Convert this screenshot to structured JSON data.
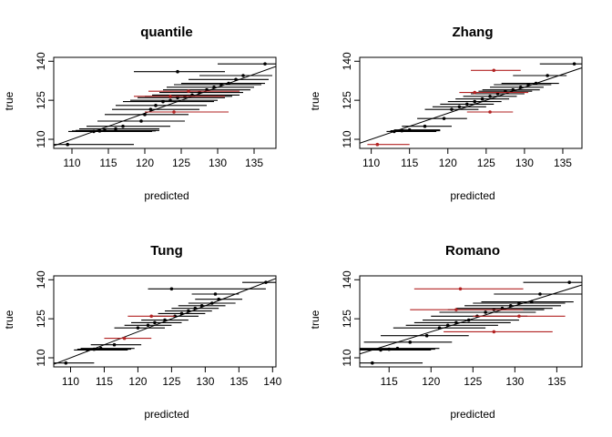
{
  "figure": {
    "panels": [
      "quantile",
      "Zhang",
      "Tung",
      "Romano"
    ]
  },
  "chart_data": [
    {
      "type": "scatter",
      "title": "quantile",
      "xlabel": "predicted",
      "ylabel": "true",
      "xlim": [
        107.5,
        138.0
      ],
      "ylim": [
        106.5,
        141.5
      ],
      "xticks": [
        110,
        115,
        120,
        125,
        130,
        135
      ],
      "yticks": [
        110,
        125,
        140
      ],
      "grid": false,
      "reference_line": {
        "type": "identity",
        "from": [
          107.5,
          107.5
        ],
        "to": [
          138.0,
          138.0
        ]
      },
      "series": [
        {
          "style": "point-interval",
          "points": [
            {
              "x": 109.4,
              "y": 108.0,
              "lo": 107.5,
              "hi": 118.5,
              "color": "black"
            },
            {
              "x": 113.0,
              "y": 113.0,
              "lo": 109.5,
              "hi": 121.0,
              "color": "black"
            },
            {
              "x": 113.8,
              "y": 113.2,
              "lo": 110.0,
              "hi": 121.5,
              "color": "black"
            },
            {
              "x": 114.5,
              "y": 113.4,
              "lo": 110.5,
              "hi": 122.0,
              "color": "black"
            },
            {
              "x": 116.0,
              "y": 114.0,
              "lo": 111.0,
              "hi": 122.0,
              "color": "black"
            },
            {
              "x": 117.0,
              "y": 115.0,
              "lo": 112.0,
              "hi": 123.5,
              "color": "black"
            },
            {
              "x": 119.5,
              "y": 117.0,
              "lo": 113.5,
              "hi": 125.5,
              "color": "black"
            },
            {
              "x": 120.0,
              "y": 119.5,
              "lo": 114.5,
              "hi": 126.0,
              "color": "black"
            },
            {
              "x": 120.8,
              "y": 121.5,
              "lo": 115.5,
              "hi": 127.5,
              "color": "black"
            },
            {
              "x": 121.5,
              "y": 123.0,
              "lo": 116.0,
              "hi": 128.5,
              "color": "black"
            },
            {
              "x": 122.5,
              "y": 124.5,
              "lo": 117.0,
              "hi": 129.5,
              "color": "black"
            },
            {
              "x": 123.5,
              "y": 125.0,
              "lo": 118.0,
              "hi": 130.0,
              "color": "black"
            },
            {
              "x": 124.5,
              "y": 126.0,
              "lo": 119.0,
              "hi": 131.0,
              "color": "black"
            },
            {
              "x": 125.5,
              "y": 126.5,
              "lo": 120.0,
              "hi": 132.0,
              "color": "black"
            },
            {
              "x": 126.5,
              "y": 127.0,
              "lo": 121.0,
              "hi": 133.0,
              "color": "black"
            },
            {
              "x": 127.5,
              "y": 128.0,
              "lo": 122.0,
              "hi": 133.5,
              "color": "black"
            },
            {
              "x": 128.5,
              "y": 129.0,
              "lo": 122.5,
              "hi": 134.5,
              "color": "black"
            },
            {
              "x": 129.5,
              "y": 130.0,
              "lo": 123.0,
              "hi": 135.0,
              "color": "black"
            },
            {
              "x": 130.5,
              "y": 131.0,
              "lo": 124.0,
              "hi": 136.0,
              "color": "black"
            },
            {
              "x": 131.5,
              "y": 131.5,
              "lo": 125.0,
              "hi": 136.5,
              "color": "black"
            },
            {
              "x": 132.5,
              "y": 133.0,
              "lo": 126.0,
              "hi": 137.0,
              "color": "black"
            },
            {
              "x": 133.5,
              "y": 134.5,
              "lo": 127.5,
              "hi": 137.5,
              "color": "black"
            },
            {
              "x": 124.5,
              "y": 136.0,
              "lo": 118.5,
              "hi": 131.0,
              "color": "black"
            },
            {
              "x": 136.5,
              "y": 139.0,
              "lo": 130.0,
              "hi": 138.0,
              "color": "black"
            },
            {
              "x": 123.5,
              "y": 126.5,
              "lo": 118.5,
              "hi": 131.0,
              "color": "darkred"
            },
            {
              "x": 124.0,
              "y": 120.5,
              "lo": 120.0,
              "hi": 131.5,
              "color": "darkred"
            },
            {
              "x": 126.0,
              "y": 128.5,
              "lo": 120.5,
              "hi": 133.0,
              "color": "darkred"
            }
          ]
        }
      ]
    },
    {
      "type": "scatter",
      "title": "Zhang",
      "xlabel": "predicted",
      "ylabel": "true",
      "xlim": [
        108.5,
        137.5
      ],
      "ylim": [
        106.5,
        141.5
      ],
      "xticks": [
        110,
        115,
        120,
        125,
        130,
        135
      ],
      "yticks": [
        110,
        125,
        140
      ],
      "grid": false,
      "reference_line": {
        "type": "identity",
        "from": [
          108.5,
          108.5
        ],
        "to": [
          137.5,
          137.5
        ]
      },
      "series": [
        {
          "style": "point-interval",
          "points": [
            {
              "x": 110.8,
              "y": 108.0,
              "lo": 109.5,
              "hi": 115.0,
              "color": "darkred"
            },
            {
              "x": 113.0,
              "y": 113.0,
              "lo": 112.0,
              "hi": 118.5,
              "color": "black"
            },
            {
              "x": 114.0,
              "y": 113.3,
              "lo": 112.5,
              "hi": 119.0,
              "color": "black"
            },
            {
              "x": 115.0,
              "y": 113.6,
              "lo": 113.0,
              "hi": 119.0,
              "color": "black"
            },
            {
              "x": 117.0,
              "y": 115.0,
              "lo": 114.0,
              "hi": 120.5,
              "color": "black"
            },
            {
              "x": 119.5,
              "y": 118.0,
              "lo": 116.0,
              "hi": 122.5,
              "color": "black"
            },
            {
              "x": 120.5,
              "y": 121.5,
              "lo": 117.0,
              "hi": 124.0,
              "color": "black"
            },
            {
              "x": 121.5,
              "y": 122.5,
              "lo": 118.0,
              "hi": 125.0,
              "color": "black"
            },
            {
              "x": 122.5,
              "y": 123.5,
              "lo": 119.0,
              "hi": 126.0,
              "color": "black"
            },
            {
              "x": 123.5,
              "y": 124.5,
              "lo": 120.0,
              "hi": 127.0,
              "color": "black"
            },
            {
              "x": 124.5,
              "y": 125.5,
              "lo": 121.0,
              "hi": 128.0,
              "color": "black"
            },
            {
              "x": 125.5,
              "y": 126.5,
              "lo": 122.0,
              "hi": 129.0,
              "color": "black"
            },
            {
              "x": 126.5,
              "y": 127.5,
              "lo": 123.0,
              "hi": 130.0,
              "color": "black"
            },
            {
              "x": 127.5,
              "y": 128.5,
              "lo": 124.0,
              "hi": 131.0,
              "color": "black"
            },
            {
              "x": 128.5,
              "y": 129.0,
              "lo": 124.5,
              "hi": 132.0,
              "color": "black"
            },
            {
              "x": 129.5,
              "y": 130.0,
              "lo": 125.5,
              "hi": 132.5,
              "color": "black"
            },
            {
              "x": 130.5,
              "y": 131.0,
              "lo": 126.0,
              "hi": 133.5,
              "color": "black"
            },
            {
              "x": 131.5,
              "y": 131.5,
              "lo": 127.0,
              "hi": 134.5,
              "color": "black"
            },
            {
              "x": 133.0,
              "y": 134.5,
              "lo": 128.5,
              "hi": 135.5,
              "color": "black"
            },
            {
              "x": 136.5,
              "y": 139.0,
              "lo": 132.0,
              "hi": 137.5,
              "color": "black"
            },
            {
              "x": 126.0,
              "y": 136.5,
              "lo": 123.0,
              "hi": 129.5,
              "color": "darkred"
            },
            {
              "x": 123.5,
              "y": 128.0,
              "lo": 121.5,
              "hi": 130.5,
              "color": "darkred"
            },
            {
              "x": 125.5,
              "y": 120.5,
              "lo": 122.5,
              "hi": 128.5,
              "color": "darkred"
            }
          ]
        }
      ]
    },
    {
      "type": "scatter",
      "title": "Tung",
      "xlabel": "predicted",
      "ylabel": "true",
      "xlim": [
        107.5,
        140.5
      ],
      "ylim": [
        106.5,
        141.5
      ],
      "xticks": [
        110,
        115,
        120,
        125,
        130,
        135,
        140
      ],
      "yticks": [
        110,
        125,
        140
      ],
      "grid": false,
      "reference_line": {
        "type": "identity",
        "from": [
          107.5,
          107.5
        ],
        "to": [
          140.5,
          140.5
        ]
      },
      "series": [
        {
          "style": "point-interval",
          "points": [
            {
              "x": 109.3,
              "y": 108.0,
              "lo": 107.5,
              "hi": 113.5,
              "color": "black"
            },
            {
              "x": 112.5,
              "y": 113.0,
              "lo": 110.5,
              "hi": 118.5,
              "color": "black"
            },
            {
              "x": 113.5,
              "y": 113.3,
              "lo": 111.0,
              "hi": 119.0,
              "color": "black"
            },
            {
              "x": 114.5,
              "y": 113.6,
              "lo": 111.5,
              "hi": 119.5,
              "color": "black"
            },
            {
              "x": 116.5,
              "y": 115.0,
              "lo": 113.0,
              "hi": 120.5,
              "color": "black"
            },
            {
              "x": 118.0,
              "y": 117.5,
              "lo": 115.0,
              "hi": 122.0,
              "color": "darkred"
            },
            {
              "x": 120.0,
              "y": 121.5,
              "lo": 116.5,
              "hi": 124.0,
              "color": "black"
            },
            {
              "x": 121.5,
              "y": 122.5,
              "lo": 118.0,
              "hi": 125.0,
              "color": "black"
            },
            {
              "x": 122.5,
              "y": 123.5,
              "lo": 119.0,
              "hi": 126.5,
              "color": "black"
            },
            {
              "x": 124.0,
              "y": 124.5,
              "lo": 120.5,
              "hi": 127.5,
              "color": "black"
            },
            {
              "x": 125.5,
              "y": 126.0,
              "lo": 122.0,
              "hi": 129.0,
              "color": "black"
            },
            {
              "x": 126.5,
              "y": 127.0,
              "lo": 123.0,
              "hi": 130.0,
              "color": "black"
            },
            {
              "x": 127.5,
              "y": 128.0,
              "lo": 124.0,
              "hi": 131.0,
              "color": "black"
            },
            {
              "x": 128.5,
              "y": 129.0,
              "lo": 125.0,
              "hi": 132.0,
              "color": "black"
            },
            {
              "x": 129.5,
              "y": 130.0,
              "lo": 126.0,
              "hi": 133.0,
              "color": "black"
            },
            {
              "x": 131.0,
              "y": 131.0,
              "lo": 127.5,
              "hi": 134.5,
              "color": "black"
            },
            {
              "x": 132.0,
              "y": 132.5,
              "lo": 128.5,
              "hi": 135.5,
              "color": "black"
            },
            {
              "x": 131.5,
              "y": 134.5,
              "lo": 128.0,
              "hi": 135.0,
              "color": "black"
            },
            {
              "x": 125.0,
              "y": 136.5,
              "lo": 121.5,
              "hi": 139.0,
              "color": "black"
            },
            {
              "x": 139.0,
              "y": 139.0,
              "lo": 135.5,
              "hi": 140.5,
              "color": "black"
            },
            {
              "x": 122.0,
              "y": 126.0,
              "lo": 118.5,
              "hi": 125.5,
              "color": "darkred"
            }
          ]
        }
      ]
    },
    {
      "type": "scatter",
      "title": "Romano",
      "xlabel": "predicted",
      "ylabel": "true",
      "xlim": [
        111.5,
        138.0
      ],
      "ylim": [
        106.5,
        141.5
      ],
      "xticks": [
        115,
        120,
        125,
        130,
        135
      ],
      "yticks": [
        110,
        125,
        140
      ],
      "grid": false,
      "reference_line": {
        "type": "identity",
        "from": [
          111.5,
          111.5
        ],
        "to": [
          138.0,
          138.0
        ]
      },
      "series": [
        {
          "style": "point-interval",
          "points": [
            {
              "x": 113.0,
              "y": 108.0,
              "lo": 111.5,
              "hi": 119.0,
              "color": "black"
            },
            {
              "x": 114.0,
              "y": 113.0,
              "lo": 111.5,
              "hi": 120.0,
              "color": "black"
            },
            {
              "x": 115.0,
              "y": 113.3,
              "lo": 111.5,
              "hi": 120.5,
              "color": "black"
            },
            {
              "x": 116.0,
              "y": 113.6,
              "lo": 111.5,
              "hi": 121.0,
              "color": "black"
            },
            {
              "x": 117.5,
              "y": 116.0,
              "lo": 112.0,
              "hi": 122.5,
              "color": "black"
            },
            {
              "x": 119.5,
              "y": 118.5,
              "lo": 114.0,
              "hi": 124.5,
              "color": "black"
            },
            {
              "x": 121.0,
              "y": 121.5,
              "lo": 115.5,
              "hi": 126.5,
              "color": "black"
            },
            {
              "x": 122.0,
              "y": 122.5,
              "lo": 117.0,
              "hi": 128.0,
              "color": "black"
            },
            {
              "x": 123.0,
              "y": 123.5,
              "lo": 118.0,
              "hi": 129.5,
              "color": "black"
            },
            {
              "x": 124.5,
              "y": 124.5,
              "lo": 119.0,
              "hi": 130.5,
              "color": "black"
            },
            {
              "x": 125.5,
              "y": 126.0,
              "lo": 120.0,
              "hi": 131.5,
              "color": "black"
            },
            {
              "x": 126.5,
              "y": 127.5,
              "lo": 121.0,
              "hi": 132.5,
              "color": "black"
            },
            {
              "x": 127.5,
              "y": 128.5,
              "lo": 122.0,
              "hi": 133.5,
              "color": "black"
            },
            {
              "x": 128.5,
              "y": 129.0,
              "lo": 123.0,
              "hi": 134.5,
              "color": "black"
            },
            {
              "x": 129.5,
              "y": 130.0,
              "lo": 124.0,
              "hi": 135.5,
              "color": "black"
            },
            {
              "x": 130.5,
              "y": 131.0,
              "lo": 125.0,
              "hi": 136.0,
              "color": "black"
            },
            {
              "x": 132.0,
              "y": 131.5,
              "lo": 126.0,
              "hi": 137.0,
              "color": "black"
            },
            {
              "x": 133.0,
              "y": 134.5,
              "lo": 127.5,
              "hi": 138.0,
              "color": "black"
            },
            {
              "x": 136.5,
              "y": 139.0,
              "lo": 131.0,
              "hi": 138.0,
              "color": "black"
            },
            {
              "x": 123.5,
              "y": 136.5,
              "lo": 118.0,
              "hi": 131.0,
              "color": "darkred"
            },
            {
              "x": 123.0,
              "y": 128.5,
              "lo": 117.5,
              "hi": 131.0,
              "color": "darkred"
            },
            {
              "x": 127.5,
              "y": 120.0,
              "lo": 121.5,
              "hi": 134.5,
              "color": "darkred"
            },
            {
              "x": 130.5,
              "y": 126.0,
              "lo": 125.0,
              "hi": 136.0,
              "color": "darkred"
            }
          ]
        }
      ]
    }
  ]
}
